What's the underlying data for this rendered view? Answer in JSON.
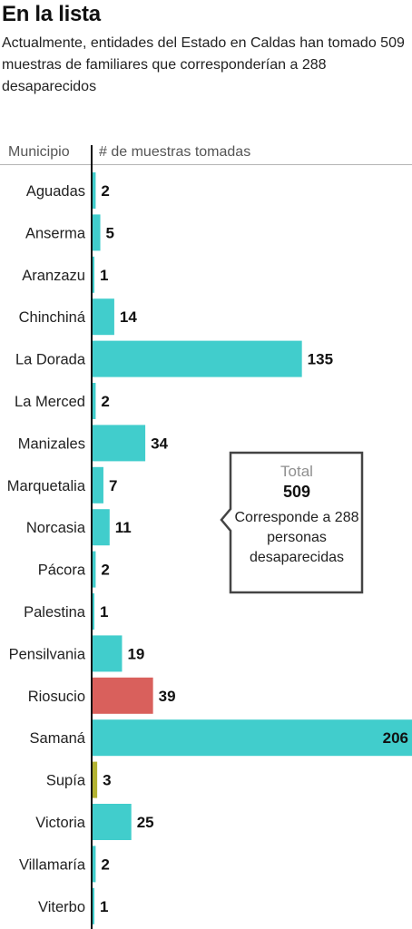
{
  "header": {
    "title": "En la lista",
    "subtitle": "Actualmente, entidades del Estado en Caldas han tomado 509 muestras de familiares que corresponderían a 288 desaparecidos"
  },
  "columns": {
    "municipio": "Municipio",
    "muestras": "# de muestras tomadas"
  },
  "callout": {
    "label": "Total",
    "value": "509",
    "note": "Corresponde a 288 personas desaparecidas"
  },
  "chart_data": {
    "type": "bar",
    "orientation": "horizontal",
    "categories": [
      "Aguadas",
      "Anserma",
      "Aranzazu",
      "Chinchiná",
      "La Dorada",
      "La Merced",
      "Manizales",
      "Marquetalia",
      "Norcasia",
      "Pácora",
      "Palestina",
      "Pensilvania",
      "Riosucio",
      "Samaná",
      "Supía",
      "Victoria",
      "Villamaría",
      "Viterbo"
    ],
    "values": [
      2,
      5,
      1,
      14,
      135,
      2,
      34,
      7,
      11,
      2,
      1,
      19,
      39,
      206,
      3,
      25,
      2,
      1
    ],
    "colors": [
      "#41cdcc",
      "#41cdcc",
      "#41cdcc",
      "#41cdcc",
      "#41cdcc",
      "#41cdcc",
      "#41cdcc",
      "#41cdcc",
      "#41cdcc",
      "#41cdcc",
      "#41cdcc",
      "#41cdcc",
      "#d9605c",
      "#41cdcc",
      "#b3b332",
      "#41cdcc",
      "#41cdcc",
      "#41cdcc"
    ],
    "label_color_inside": "#111111",
    "xlim": [
      0,
      206
    ],
    "grid": false,
    "legend": "none"
  }
}
